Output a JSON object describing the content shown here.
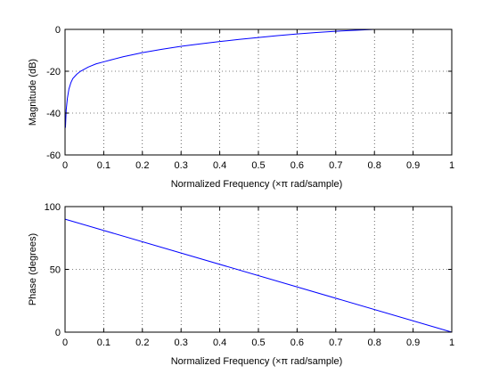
{
  "chart_data": [
    {
      "type": "line",
      "xlabel": "Normalized Frequency  (×π rad/sample)",
      "ylabel": "Magnitude (dB)",
      "xlim": [
        0,
        1
      ],
      "ylim": [
        -60,
        0
      ],
      "xticks": [
        0,
        0.1,
        0.2,
        0.3,
        0.4,
        0.5,
        0.6,
        0.7,
        0.8,
        0.9,
        1
      ],
      "xtick_labels": [
        "0",
        "0.1",
        "0.2",
        "0.3",
        "0.4",
        "0.5",
        "0.6",
        "0.7",
        "0.8",
        "0.9",
        "1"
      ],
      "yticks": [
        -60,
        -40,
        -20,
        0
      ],
      "ytick_labels": [
        "-60",
        "-40",
        "-20",
        "0"
      ],
      "grid": true,
      "line_color": "#0000ff",
      "series": [
        {
          "x": [
            0.001,
            0.003,
            0.006,
            0.01,
            0.015,
            0.02,
            0.03,
            0.04,
            0.05,
            0.06,
            0.08,
            0.1,
            0.12,
            0.15,
            0.2,
            0.25,
            0.3,
            0.35,
            0.4,
            0.45,
            0.5,
            0.55,
            0.6,
            0.65,
            0.7,
            0.75,
            0.8
          ],
          "y": [
            -47,
            -38.5,
            -33,
            -28.5,
            -25.5,
            -23.5,
            -21.5,
            -20,
            -19,
            -18,
            -16.5,
            -15.5,
            -14.5,
            -13.1,
            -11.1,
            -9.5,
            -8.1,
            -6.9,
            -5.8,
            -4.8,
            -3.9,
            -3.0,
            -2.2,
            -1.5,
            -0.9,
            -0.4,
            0
          ]
        }
      ]
    },
    {
      "type": "line",
      "xlabel": "Normalized Frequency  (×π rad/sample)",
      "ylabel": "Phase (degrees)",
      "xlim": [
        0,
        1
      ],
      "ylim": [
        0,
        100
      ],
      "xticks": [
        0,
        0.1,
        0.2,
        0.3,
        0.4,
        0.5,
        0.6,
        0.7,
        0.8,
        0.9,
        1
      ],
      "xtick_labels": [
        "0",
        "0.1",
        "0.2",
        "0.3",
        "0.4",
        "0.5",
        "0.6",
        "0.7",
        "0.8",
        "0.9",
        "1"
      ],
      "yticks": [
        0,
        50,
        100
      ],
      "ytick_labels": [
        "0",
        "50",
        "100"
      ],
      "grid": true,
      "line_color": "#0000ff",
      "series": [
        {
          "x": [
            0,
            1
          ],
          "y": [
            90,
            0
          ]
        }
      ]
    }
  ]
}
